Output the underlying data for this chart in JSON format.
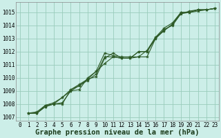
{
  "title": "Graphe pression niveau de la mer (hPa)",
  "bg_color": "#cceee8",
  "grid_color": "#99ccbb",
  "line_color": "#2d5a27",
  "marker_color": "#2d5a27",
  "xlim": [
    -0.5,
    23.5
  ],
  "ylim": [
    1006.7,
    1015.8
  ],
  "xticks": [
    0,
    1,
    2,
    3,
    4,
    5,
    6,
    7,
    8,
    9,
    10,
    11,
    12,
    13,
    14,
    15,
    16,
    17,
    18,
    19,
    20,
    21,
    22,
    23
  ],
  "yticks": [
    1007,
    1008,
    1009,
    1010,
    1011,
    1012,
    1013,
    1014,
    1015
  ],
  "series": [
    {
      "x": [
        1,
        2,
        3,
        4,
        5,
        6,
        7,
        8,
        9,
        10,
        11,
        12,
        13,
        14,
        15,
        16,
        17,
        18,
        19,
        20,
        21,
        22,
        23
      ],
      "y": [
        1007.3,
        1007.3,
        1007.8,
        1008.0,
        1008.5,
        1009.1,
        1009.5,
        1009.9,
        1010.5,
        1011.9,
        1011.7,
        1011.6,
        1011.6,
        1011.6,
        1011.6,
        1013.0,
        1013.6,
        1014.1,
        1014.9,
        1015.0,
        1015.2,
        1015.2,
        1015.3
      ]
    },
    {
      "x": [
        1,
        2,
        3,
        4,
        5,
        6,
        7,
        8,
        9,
        10,
        11,
        12,
        13,
        14,
        15,
        16,
        17,
        18,
        19,
        20,
        21,
        22,
        23
      ],
      "y": [
        1007.3,
        1007.3,
        1007.8,
        1008.0,
        1008.0,
        1009.1,
        1009.4,
        1009.8,
        1010.3,
        1011.6,
        1011.6,
        1011.5,
        1011.5,
        1011.6,
        1012.1,
        1013.1,
        1013.6,
        1014.1,
        1015.0,
        1015.0,
        1015.1,
        1015.2,
        1015.3
      ]
    },
    {
      "x": [
        1,
        2,
        3,
        4,
        5,
        6,
        7,
        8,
        9,
        10,
        11,
        12,
        13,
        14,
        15,
        16,
        17,
        18,
        19,
        20,
        21,
        22,
        23
      ],
      "y": [
        1007.3,
        1007.3,
        1007.9,
        1008.1,
        1008.5,
        1009.0,
        1009.4,
        1009.9,
        1010.1,
        1011.5,
        1011.9,
        1011.5,
        1011.5,
        1012.0,
        1012.0,
        1013.0,
        1013.7,
        1014.0,
        1014.9,
        1015.1,
        1015.2,
        1015.2,
        1015.3
      ]
    },
    {
      "x": [
        1,
        2,
        3,
        4,
        5,
        6,
        7,
        8,
        9,
        10,
        11,
        12,
        13,
        14,
        15,
        16,
        17,
        18,
        19,
        20,
        21,
        22,
        23
      ],
      "y": [
        1007.3,
        1007.4,
        1007.9,
        1008.0,
        1008.1,
        1009.0,
        1009.1,
        1010.0,
        1010.5,
        1011.1,
        1011.6,
        1011.5,
        1011.5,
        1012.0,
        1012.0,
        1013.1,
        1013.8,
        1014.2,
        1015.0,
        1015.0,
        1015.2,
        1015.2,
        1015.3
      ]
    }
  ],
  "font_family": "monospace",
  "title_fontsize": 7.5,
  "tick_fontsize": 5.5
}
